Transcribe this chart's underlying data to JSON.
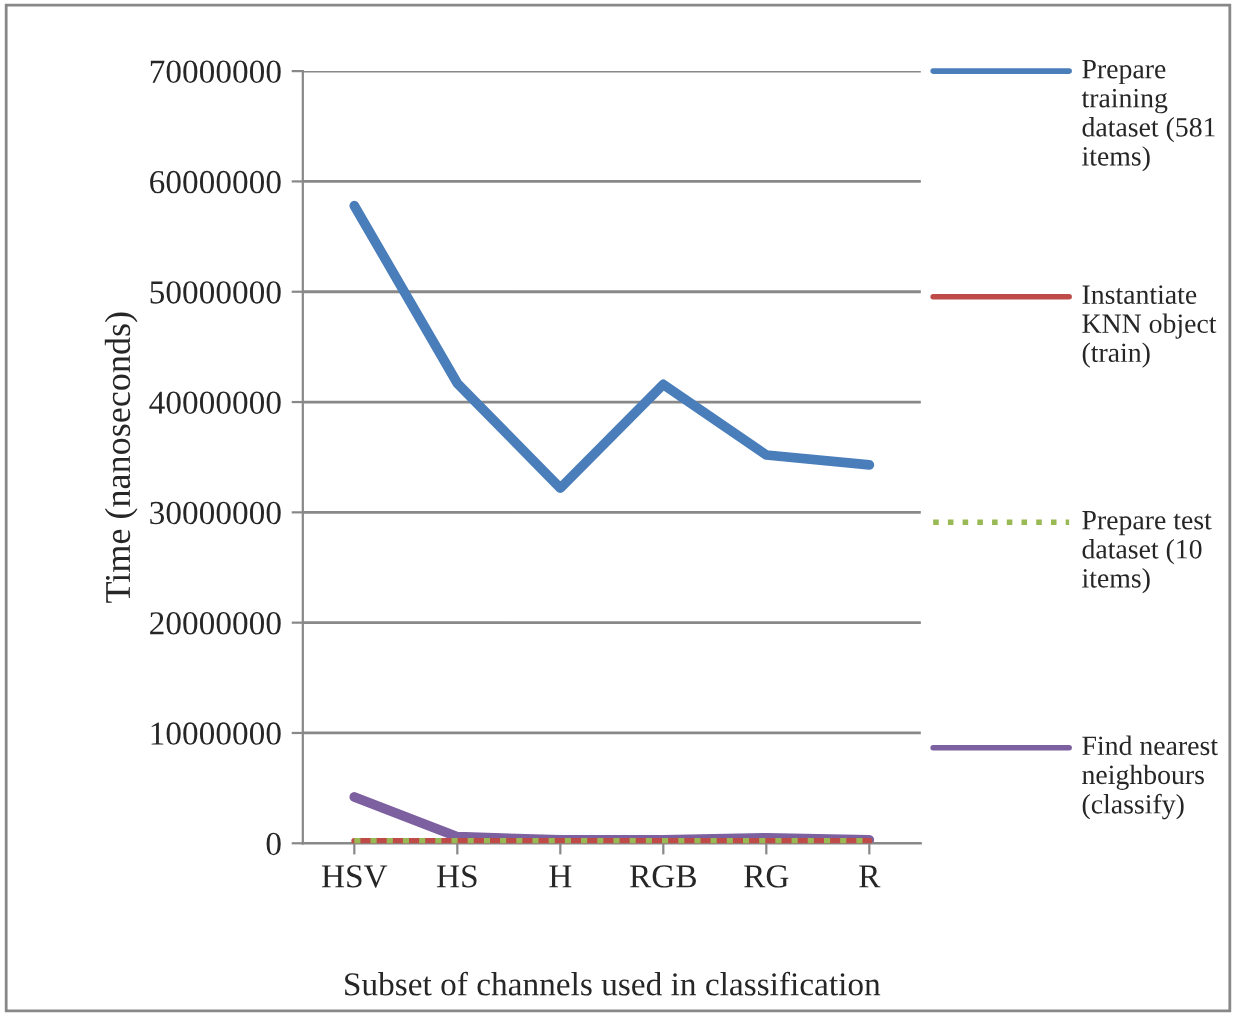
{
  "chart_data": {
    "type": "line",
    "xlabel": "Subset of channels used in classification",
    "ylabel": "Time (nanoseconds)",
    "categories": [
      "HSV",
      "HS",
      "H",
      "RGB",
      "RG",
      "R"
    ],
    "series": [
      {
        "name": "Prepare training dataset (581 items)",
        "color": "#4a7ebb",
        "values": [
          57800000,
          41700000,
          32200000,
          41600000,
          35200000,
          34300000
        ]
      },
      {
        "name": "Instantiate KNN object (train)",
        "color": "#be4b48",
        "values": [
          200000,
          200000,
          200000,
          200000,
          200000,
          200000
        ]
      },
      {
        "name": "Prepare test dataset (10 items)",
        "color": "#98b954",
        "line_style": "dotted",
        "values": [
          200000,
          200000,
          200000,
          200000,
          200000,
          200000
        ]
      },
      {
        "name": "Find nearest neighbours (classify)",
        "color": "#7d60a0",
        "values": [
          4200000,
          600000,
          300000,
          300000,
          500000,
          300000
        ]
      }
    ],
    "ylim": [
      0,
      70000000
    ],
    "yticks": [
      0,
      10000000,
      20000000,
      30000000,
      40000000,
      50000000,
      60000000,
      70000000
    ],
    "grid": "y",
    "legend": "right",
    "line_style": "solid",
    "marker": "none"
  }
}
